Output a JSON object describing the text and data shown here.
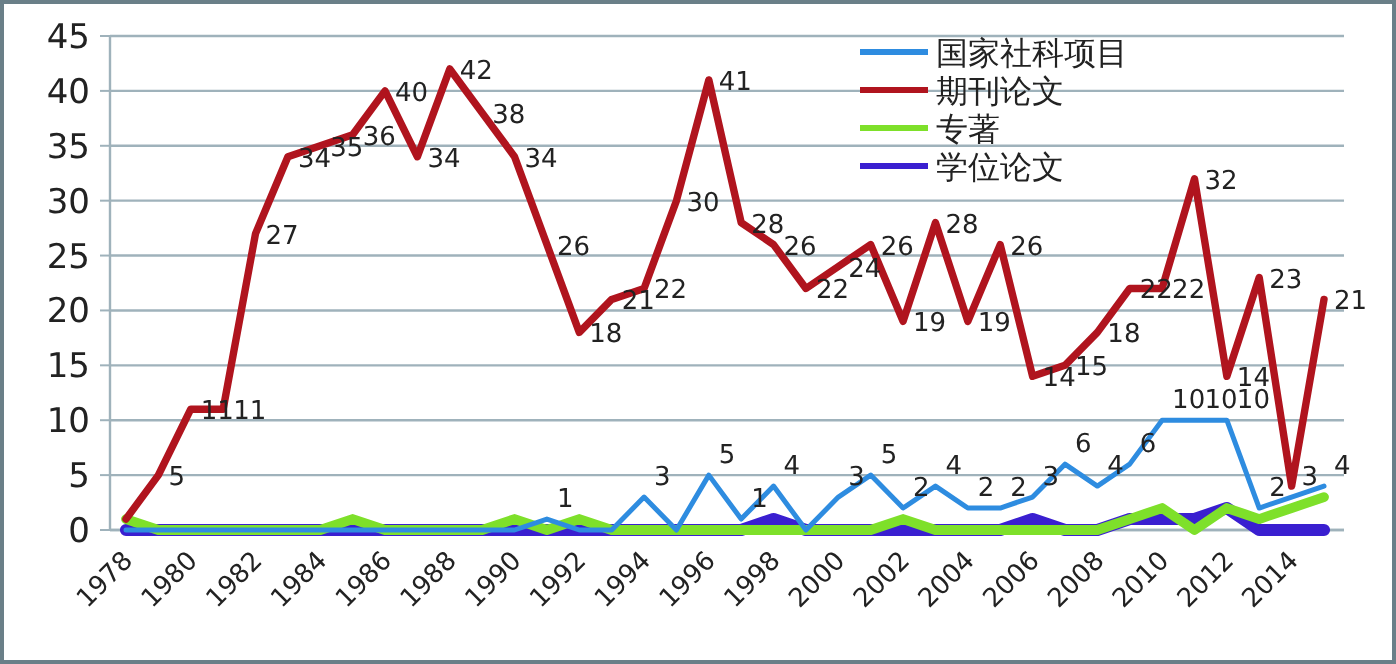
{
  "chart_data": {
    "type": "line",
    "categories": [
      "1978",
      null,
      "1980",
      null,
      "1982",
      null,
      "1984",
      null,
      "1986",
      null,
      "1988",
      null,
      "1990",
      null,
      "1992",
      null,
      "1994",
      null,
      "1996",
      null,
      "1998",
      null,
      "2000",
      null,
      "2002",
      null,
      "2004",
      null,
      "2006",
      null,
      "2008",
      null,
      "2010",
      null,
      "2012",
      null,
      "2014",
      null
    ],
    "series": [
      {
        "name": "国家社科项目",
        "color": "#2e8ce0",
        "values": [
          0,
          0,
          0,
          0,
          0,
          0,
          0,
          0,
          0,
          0,
          0,
          0,
          0,
          1,
          0,
          0,
          3,
          0,
          5,
          1,
          4,
          0,
          3,
          5,
          2,
          4,
          2,
          2,
          3,
          6,
          4,
          6,
          10,
          10,
          10,
          2,
          3,
          4
        ],
        "value_labels": [
          null,
          null,
          null,
          null,
          null,
          null,
          null,
          null,
          null,
          null,
          null,
          null,
          null,
          "1",
          null,
          null,
          "3",
          null,
          "5",
          "1",
          "4",
          null,
          "3",
          "5",
          "2",
          "4",
          "2",
          "2",
          "3",
          "6",
          "4",
          "6",
          "10",
          "10",
          "10",
          "2",
          "3",
          "4"
        ]
      },
      {
        "name": "期刊论文",
        "color": "#b0141e",
        "values": [
          1,
          5,
          11,
          11,
          27,
          34,
          35,
          36,
          40,
          34,
          42,
          38,
          34,
          26,
          18,
          21,
          22,
          30,
          41,
          28,
          26,
          22,
          24,
          26,
          19,
          28,
          19,
          26,
          14,
          15,
          18,
          22,
          22,
          32,
          14,
          23,
          4,
          21
        ],
        "value_labels": [
          null,
          "5",
          "11",
          "11",
          "27",
          "34",
          "35",
          "36",
          "40",
          "34",
          "42",
          "38",
          "34",
          "26",
          "18",
          "21",
          "22",
          "30",
          "41",
          "28",
          "26",
          "22",
          "24",
          "26",
          "19",
          "28",
          "19",
          "26",
          "14",
          "15",
          "18",
          "22",
          "22",
          "32",
          "14",
          "23",
          null,
          "21"
        ]
      },
      {
        "name": "专著",
        "color": "#7ee02a",
        "values": [
          1,
          0,
          0,
          0,
          0,
          0,
          0,
          1,
          0,
          0,
          0,
          0,
          1,
          0,
          1,
          0,
          0,
          0,
          0,
          0,
          0,
          0,
          0,
          0,
          1,
          0,
          0,
          0,
          0,
          0,
          0,
          1,
          2,
          0,
          2,
          1,
          2,
          3
        ]
      },
      {
        "name": "学位论文",
        "color": "#3a1fd0",
        "values": [
          0,
          0,
          0,
          0,
          0,
          0,
          0,
          0,
          0,
          0,
          0,
          0,
          0,
          0,
          0,
          0,
          0,
          0,
          0,
          0,
          1,
          0,
          0,
          0,
          0,
          0,
          0,
          0,
          1,
          0,
          0,
          1,
          1,
          1,
          2,
          0,
          0,
          0
        ]
      }
    ],
    "ylim": [
      0,
      45
    ],
    "yticks": [
      0,
      5,
      10,
      15,
      20,
      25,
      30,
      35,
      40,
      45
    ],
    "grid": "y",
    "legend": "top right",
    "marker": "none",
    "line_style": "solid"
  }
}
